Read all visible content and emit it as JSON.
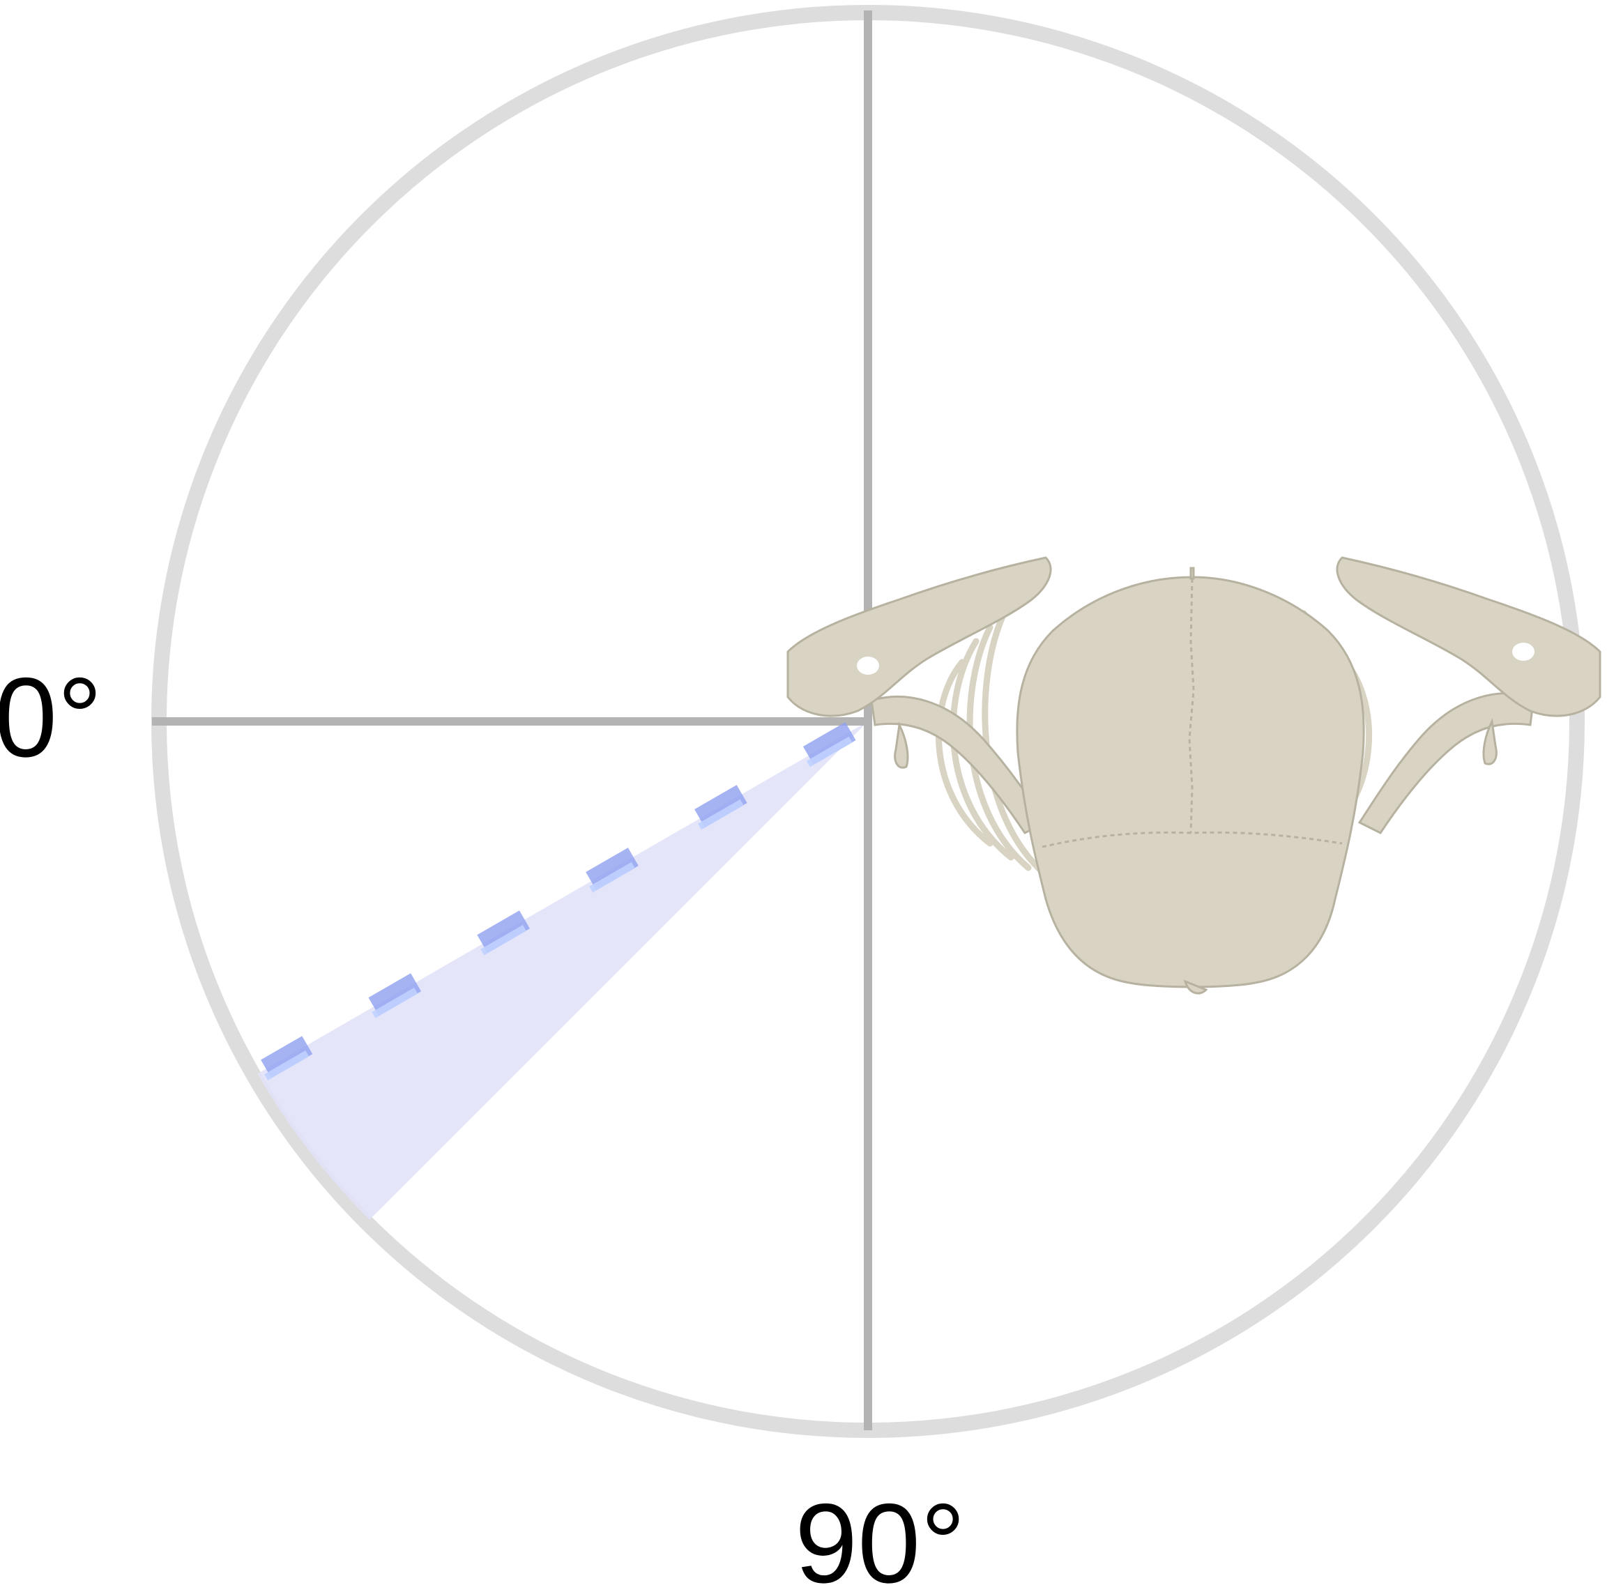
{
  "diagram": {
    "angle_labels": {
      "left": "0°",
      "bottom": "90°"
    },
    "measurement": {
      "line_angle_deg": 30,
      "range_start_deg": 30,
      "range_end_deg": 45
    },
    "colors": {
      "dial_ring": "#dddddd",
      "crosshair": "#b3b3b3",
      "wedge_fill": "#e2e2fa",
      "dashed_line": "#8fa0f0",
      "dashed_line_highlight": "#bfd0ff",
      "bone": "#d8d3c3",
      "bone_shadow": "#b7b19f"
    },
    "icons": {
      "anatomy": "shoulder-girdle-skeleton-icon"
    }
  }
}
